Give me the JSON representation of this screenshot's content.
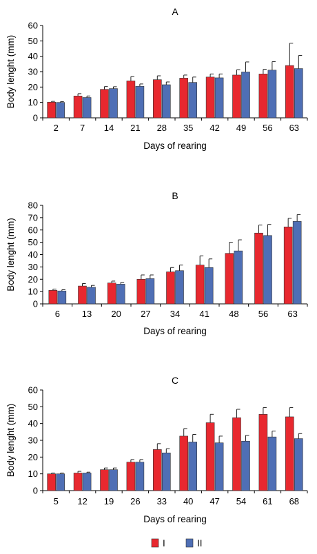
{
  "colors": {
    "I": "#e8282f",
    "II": "#4f6fb5"
  },
  "legend": {
    "position": "bottom-center",
    "items": [
      "I",
      "II"
    ]
  },
  "chart_data": [
    {
      "type": "bar",
      "title": "A",
      "xlabel": "Days of rearing",
      "ylabel": "Body lenght (mm)",
      "ylim": [
        0,
        60
      ],
      "yticks": [
        0,
        10,
        20,
        30,
        40,
        50,
        60
      ],
      "categories": [
        "2",
        "7",
        "14",
        "21",
        "28",
        "35",
        "42",
        "49",
        "56",
        "63"
      ],
      "series": [
        {
          "name": "I",
          "values": [
            10.2,
            14.2,
            18.5,
            24.0,
            24.8,
            25.8,
            26.5,
            27.8,
            28.5,
            34.0
          ],
          "errors": [
            0.5,
            1.5,
            1.8,
            2.8,
            2.5,
            2.0,
            2.0,
            3.5,
            3.0,
            14.5
          ]
        },
        {
          "name": "II",
          "values": [
            10.0,
            13.2,
            19.0,
            20.5,
            21.5,
            23.0,
            26.0,
            29.8,
            31.0,
            32.0
          ],
          "errors": [
            0.5,
            1.0,
            1.2,
            1.5,
            1.8,
            3.5,
            2.5,
            6.5,
            5.5,
            8.5
          ]
        }
      ]
    },
    {
      "type": "bar",
      "title": "B",
      "xlabel": "Days of rearing",
      "ylabel": "Body lenght (mm)",
      "ylim": [
        0,
        80
      ],
      "yticks": [
        0,
        10,
        20,
        30,
        40,
        50,
        60,
        70,
        80
      ],
      "categories": [
        "6",
        "13",
        "20",
        "27",
        "34",
        "41",
        "48",
        "56",
        "63"
      ],
      "series": [
        {
          "name": "I",
          "values": [
            11.0,
            14.5,
            17.0,
            20.0,
            26.0,
            31.5,
            41.0,
            57.5,
            62.5
          ],
          "errors": [
            1.0,
            2.0,
            1.5,
            3.5,
            3.5,
            7.5,
            9.0,
            6.5,
            7.0
          ]
        },
        {
          "name": "II",
          "values": [
            10.5,
            13.5,
            16.0,
            20.5,
            27.0,
            29.5,
            43.0,
            55.5,
            67.0
          ],
          "errors": [
            1.0,
            1.5,
            1.5,
            3.0,
            4.5,
            7.0,
            9.0,
            9.0,
            5.5
          ]
        }
      ]
    },
    {
      "type": "bar",
      "title": "C",
      "xlabel": "Days of rearing",
      "ylabel": "Body lenght (mm)",
      "ylim": [
        0,
        60
      ],
      "yticks": [
        0,
        10,
        20,
        30,
        40,
        50,
        60
      ],
      "categories": [
        "5",
        "12",
        "19",
        "26",
        "33",
        "40",
        "47",
        "54",
        "61",
        "68"
      ],
      "series": [
        {
          "name": "I",
          "values": [
            10.0,
            10.5,
            12.5,
            17.0,
            24.5,
            32.5,
            40.5,
            43.5,
            45.5,
            44.0
          ],
          "errors": [
            0.5,
            1.0,
            1.0,
            1.5,
            3.5,
            4.5,
            5.0,
            5.0,
            4.0,
            5.5
          ]
        },
        {
          "name": "II",
          "values": [
            10.0,
            10.5,
            12.5,
            17.0,
            22.5,
            29.0,
            28.5,
            29.5,
            32.0,
            31.0
          ],
          "errors": [
            0.5,
            0.5,
            1.0,
            1.5,
            2.5,
            4.5,
            4.0,
            3.5,
            3.5,
            3.0
          ]
        }
      ]
    }
  ]
}
